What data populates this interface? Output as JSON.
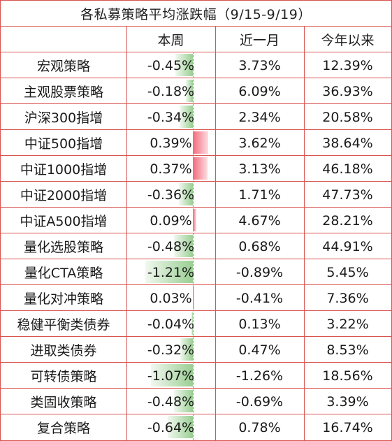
{
  "title": "各私募策略平均涨跌幅（9/15-9/19）",
  "headers": [
    "",
    "本周",
    "近一月",
    "今年以来"
  ],
  "rows": [
    {
      "name": "宏观策略",
      "week": "-0.45%",
      "month": "3.73%",
      "ytd": "12.39%",
      "week_value": -0.45
    },
    {
      "name": "主观股票策略",
      "week": "-0.18%",
      "month": "6.09%",
      "ytd": "36.93%",
      "week_value": -0.18
    },
    {
      "name": "沪深300指增",
      "week": "-0.34%",
      "month": "2.34%",
      "ytd": "20.58%",
      "week_value": -0.34
    },
    {
      "name": "中证500指增",
      "week": "0.39%",
      "month": "3.62%",
      "ytd": "38.64%",
      "week_value": 0.39
    },
    {
      "name": "中证1000指增",
      "week": "0.37%",
      "month": "3.13%",
      "ytd": "46.18%",
      "week_value": 0.37
    },
    {
      "name": "中证2000指增",
      "week": "-0.36%",
      "month": "1.71%",
      "ytd": "47.73%",
      "week_value": -0.36
    },
    {
      "name": "中证A500指增",
      "week": "0.09%",
      "month": "4.67%",
      "ytd": "28.21%",
      "week_value": 0.09
    },
    {
      "name": "量化选股策略",
      "week": "-0.48%",
      "month": "0.68%",
      "ytd": "44.91%",
      "week_value": -0.48
    },
    {
      "name": "量化CTA策略",
      "week": "-1.21%",
      "month": "-0.89%",
      "ytd": "5.45%",
      "week_value": -1.21
    },
    {
      "name": "量化对冲策略",
      "week": "0.03%",
      "month": "-0.41%",
      "ytd": "7.36%",
      "week_value": 0.03
    },
    {
      "name": "稳健平衡类债券",
      "week": "-0.04%",
      "month": "0.13%",
      "ytd": "3.22%",
      "week_value": -0.04
    },
    {
      "name": "进取类债券",
      "week": "-0.32%",
      "month": "0.47%",
      "ytd": "8.53%",
      "week_value": -0.32
    },
    {
      "name": "可转债策略",
      "week": "-1.07%",
      "month": "-1.26%",
      "ytd": "18.56%",
      "week_value": -1.07
    },
    {
      "name": "类固收策略",
      "week": "-0.48%",
      "month": "-0.69%",
      "ytd": "3.39%",
      "week_value": -0.48
    },
    {
      "name": "复合策略",
      "week": "-0.64%",
      "month": "0.78%",
      "ytd": "16.74%",
      "week_value": -0.64
    }
  ],
  "colors": {
    "border": "#d9534f",
    "negative_bar": "#78be6e",
    "positive_bar": "#f05a6e"
  }
}
